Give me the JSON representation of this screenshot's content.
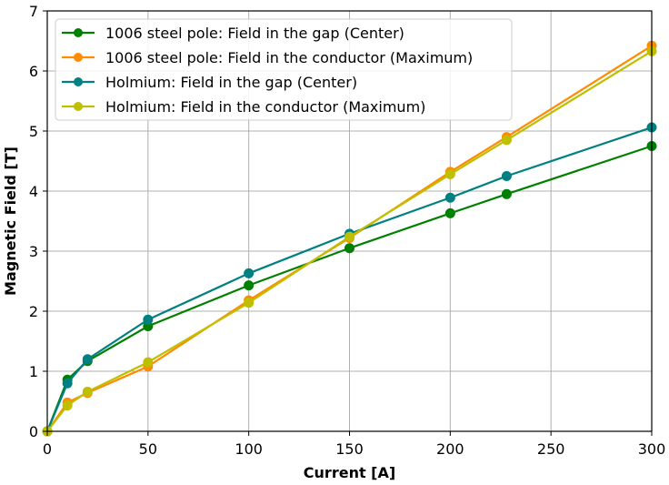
{
  "chart_data": {
    "type": "line",
    "title": "",
    "xlabel": "Current [A]",
    "ylabel": "Magnetic Field [T]",
    "xlim": [
      0,
      300
    ],
    "ylim": [
      0,
      7
    ],
    "xticks": [
      0,
      50,
      100,
      150,
      200,
      250,
      300
    ],
    "yticks": [
      0,
      1,
      2,
      3,
      4,
      5,
      6,
      7
    ],
    "grid": true,
    "legend_position": "upper-left",
    "series": [
      {
        "name": "1006 steel pole: Field in the gap (Center)",
        "color": "#008000",
        "x": [
          0,
          10,
          20,
          50,
          100,
          150,
          200,
          228,
          300
        ],
        "y": [
          0,
          0.86,
          1.17,
          1.75,
          2.43,
          3.05,
          3.63,
          3.95,
          4.75
        ]
      },
      {
        "name": "1006 steel pole: Field in the conductor (Maximum)",
        "color": "#ff8c00",
        "x": [
          0,
          10,
          20,
          50,
          100,
          150,
          200,
          228,
          300
        ],
        "y": [
          0,
          0.48,
          0.64,
          1.08,
          2.18,
          3.22,
          4.32,
          4.9,
          6.42
        ]
      },
      {
        "name": "Holmium: Field in the gap (Center)",
        "color": "#008080",
        "x": [
          0,
          10,
          20,
          50,
          100,
          150,
          200,
          228,
          300
        ],
        "y": [
          0,
          0.8,
          1.2,
          1.86,
          2.63,
          3.29,
          3.89,
          4.25,
          5.06
        ]
      },
      {
        "name": "Holmium: Field in the conductor (Maximum)",
        "color": "#bfbf00",
        "x": [
          0,
          10,
          20,
          50,
          100,
          150,
          200,
          228,
          300
        ],
        "y": [
          0,
          0.43,
          0.66,
          1.15,
          2.14,
          3.24,
          4.28,
          4.85,
          6.33
        ]
      }
    ]
  }
}
